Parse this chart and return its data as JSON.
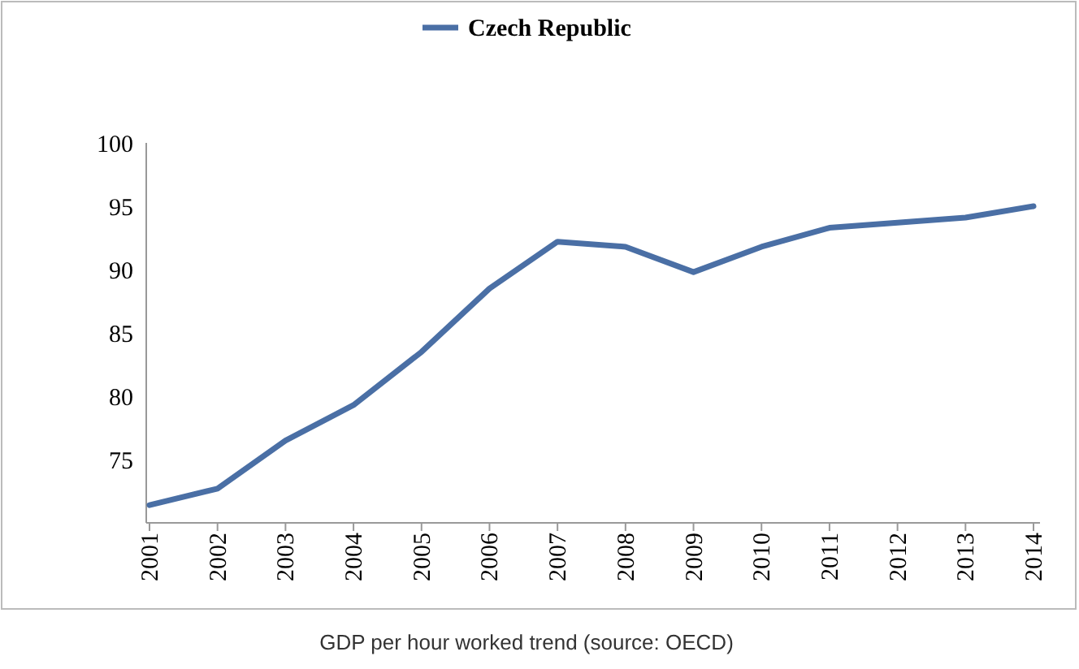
{
  "chart_data": {
    "type": "line",
    "categories": [
      "2001",
      "2002",
      "2003",
      "2004",
      "2005",
      "2006",
      "2007",
      "2008",
      "2009",
      "2010",
      "2011",
      "2012",
      "2013",
      "2014"
    ],
    "series": [
      {
        "name": "Czech Republic",
        "color": "#4a6fa5",
        "values": [
          71.4,
          72.7,
          76.5,
          79.3,
          83.5,
          88.5,
          92.2,
          91.8,
          89.8,
          91.8,
          93.3,
          93.7,
          94.1,
          95.0
        ]
      }
    ],
    "ylim": [
      70,
      100
    ],
    "yticks": [
      75,
      80,
      85,
      90,
      95,
      100
    ],
    "grid": false,
    "legend": "top",
    "marker": "none",
    "line_style": "solid",
    "annotations": [
      "GDP per hour worked trend (source: OECD)"
    ]
  }
}
